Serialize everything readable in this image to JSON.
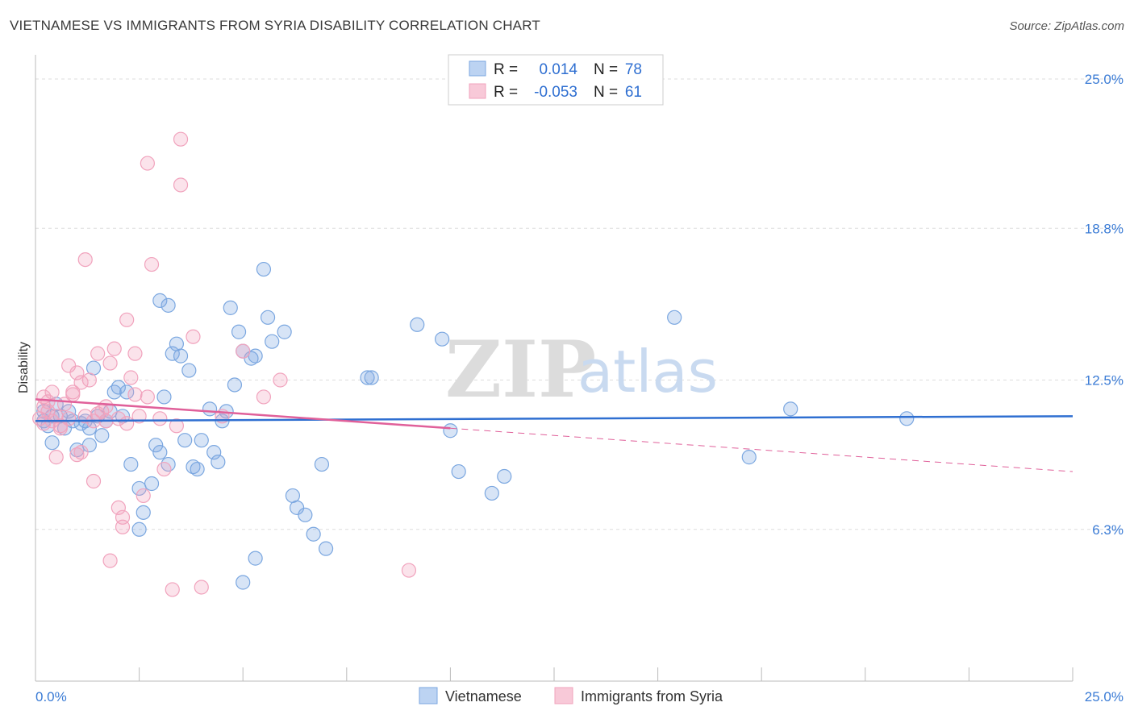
{
  "title": "VIETNAMESE VS IMMIGRANTS FROM SYRIA DISABILITY CORRELATION CHART",
  "source": "Source: ZipAtlas.com",
  "watermark": {
    "zip": "ZIP",
    "atlas": "atlas"
  },
  "chart_data": {
    "type": "scatter",
    "title": "VIETNAMESE VS IMMIGRANTS FROM SYRIA DISABILITY CORRELATION CHART",
    "xlabel": "",
    "ylabel": "Disability",
    "xlim": [
      0,
      25
    ],
    "ylim": [
      0,
      25
    ],
    "x_tick_labels": {
      "left": "0.0%",
      "right": "25.0%"
    },
    "y_ticks": [
      {
        "value": 6.3,
        "label": "6.3%"
      },
      {
        "value": 12.5,
        "label": "12.5%"
      },
      {
        "value": 18.8,
        "label": "18.8%"
      },
      {
        "value": 25.0,
        "label": "25.0%"
      }
    ],
    "legend": {
      "position": "top-center",
      "entries": [
        {
          "r_label": "R =",
          "r_value": "0.014",
          "n_label": "N =",
          "n_value": "78"
        },
        {
          "r_label": "R =",
          "r_value": "-0.053",
          "n_label": "N =",
          "n_value": "61"
        }
      ]
    },
    "series": [
      {
        "name": "Vietnamese",
        "color": "#7ba7e0",
        "line_color": "#2f6fd1",
        "trend": {
          "x0": 0,
          "y0": 10.8,
          "x1": 25,
          "y1": 11.0,
          "dashed_from": null
        },
        "points": [
          [
            0.2,
            10.8
          ],
          [
            0.2,
            11.2
          ],
          [
            0.3,
            10.6
          ],
          [
            0.4,
            11.0
          ],
          [
            0.5,
            11.5
          ],
          [
            0.6,
            11.0
          ],
          [
            0.7,
            10.5
          ],
          [
            0.4,
            9.9
          ],
          [
            0.8,
            11.2
          ],
          [
            0.9,
            10.8
          ],
          [
            1.0,
            9.6
          ],
          [
            1.1,
            10.7
          ],
          [
            1.2,
            10.8
          ],
          [
            1.3,
            9.8
          ],
          [
            1.3,
            10.5
          ],
          [
            1.4,
            13.0
          ],
          [
            1.5,
            11.0
          ],
          [
            1.6,
            10.2
          ],
          [
            1.7,
            10.8
          ],
          [
            1.8,
            11.2
          ],
          [
            1.9,
            12.0
          ],
          [
            2.0,
            12.2
          ],
          [
            2.1,
            11.0
          ],
          [
            2.2,
            12.0
          ],
          [
            2.3,
            9.0
          ],
          [
            2.5,
            8.0
          ],
          [
            2.6,
            7.0
          ],
          [
            2.8,
            8.2
          ],
          [
            2.9,
            9.8
          ],
          [
            3.0,
            9.5
          ],
          [
            3.1,
            11.8
          ],
          [
            3.2,
            9.0
          ],
          [
            3.3,
            13.6
          ],
          [
            3.4,
            14.0
          ],
          [
            3.5,
            13.5
          ],
          [
            3.6,
            10.0
          ],
          [
            3.7,
            12.9
          ],
          [
            3.8,
            8.9
          ],
          [
            3.9,
            8.8
          ],
          [
            4.0,
            10.0
          ],
          [
            4.2,
            11.3
          ],
          [
            4.3,
            9.5
          ],
          [
            4.4,
            9.1
          ],
          [
            4.5,
            10.8
          ],
          [
            4.6,
            11.2
          ],
          [
            4.7,
            15.5
          ],
          [
            4.8,
            12.3
          ],
          [
            4.9,
            14.5
          ],
          [
            5.0,
            13.7
          ],
          [
            5.2,
            13.4
          ],
          [
            5.3,
            13.5
          ],
          [
            5.5,
            17.1
          ],
          [
            5.6,
            15.1
          ],
          [
            5.7,
            14.1
          ],
          [
            6.0,
            14.5
          ],
          [
            6.2,
            7.7
          ],
          [
            6.3,
            7.2
          ],
          [
            6.5,
            6.9
          ],
          [
            6.7,
            6.1
          ],
          [
            6.9,
            9.0
          ],
          [
            7.0,
            5.5
          ],
          [
            8.0,
            12.6
          ],
          [
            8.1,
            12.6
          ],
          [
            9.2,
            14.8
          ],
          [
            9.8,
            14.2
          ],
          [
            10.0,
            10.4
          ],
          [
            10.2,
            8.7
          ],
          [
            11.0,
            7.8
          ],
          [
            11.3,
            8.5
          ],
          [
            15.4,
            15.1
          ],
          [
            17.2,
            9.3
          ],
          [
            18.2,
            11.3
          ],
          [
            21.0,
            10.9
          ],
          [
            3.0,
            15.8
          ],
          [
            3.2,
            15.6
          ],
          [
            5.0,
            4.1
          ],
          [
            5.3,
            5.1
          ],
          [
            2.5,
            6.3
          ]
        ]
      },
      {
        "name": "Immigrants from Syria",
        "color": "#f1a3bd",
        "line_color": "#e0609a",
        "trend": {
          "x0": 0,
          "y0": 11.7,
          "x1": 10,
          "y1": 10.5,
          "dash_x1": 25,
          "dash_y1": 8.7
        },
        "points": [
          [
            0.1,
            10.9
          ],
          [
            0.2,
            11.4
          ],
          [
            0.2,
            11.8
          ],
          [
            0.3,
            11.2
          ],
          [
            0.4,
            10.8
          ],
          [
            0.4,
            12.0
          ],
          [
            0.5,
            11.0
          ],
          [
            0.6,
            10.6
          ],
          [
            0.7,
            11.5
          ],
          [
            0.8,
            13.1
          ],
          [
            0.9,
            12.0
          ],
          [
            1.0,
            9.4
          ],
          [
            1.0,
            12.8
          ],
          [
            1.1,
            12.4
          ],
          [
            1.2,
            11.0
          ],
          [
            1.3,
            12.5
          ],
          [
            1.4,
            8.3
          ],
          [
            1.5,
            13.6
          ],
          [
            1.6,
            11.2
          ],
          [
            1.7,
            10.8
          ],
          [
            1.8,
            13.2
          ],
          [
            1.9,
            13.8
          ],
          [
            2.0,
            7.2
          ],
          [
            2.1,
            6.8
          ],
          [
            2.1,
            6.4
          ],
          [
            2.2,
            15.0
          ],
          [
            2.3,
            12.6
          ],
          [
            2.4,
            13.6
          ],
          [
            2.5,
            11.0
          ],
          [
            2.6,
            7.7
          ],
          [
            2.7,
            11.8
          ],
          [
            2.8,
            17.3
          ],
          [
            3.0,
            10.9
          ],
          [
            3.1,
            8.8
          ],
          [
            3.3,
            3.8
          ],
          [
            3.5,
            22.5
          ],
          [
            3.5,
            20.6
          ],
          [
            3.8,
            14.3
          ],
          [
            4.0,
            3.9
          ],
          [
            2.7,
            21.5
          ],
          [
            1.2,
            17.5
          ],
          [
            1.8,
            5.0
          ],
          [
            4.5,
            11.0
          ],
          [
            5.0,
            13.7
          ],
          [
            5.5,
            11.8
          ],
          [
            5.9,
            12.5
          ],
          [
            9.0,
            4.6
          ],
          [
            0.5,
            9.3
          ],
          [
            0.6,
            10.5
          ],
          [
            1.4,
            10.8
          ],
          [
            2.2,
            10.7
          ],
          [
            0.3,
            11.6
          ],
          [
            0.9,
            11.9
          ],
          [
            1.5,
            11.1
          ],
          [
            2.0,
            10.9
          ],
          [
            1.1,
            9.5
          ],
          [
            0.8,
            10.9
          ],
          [
            1.7,
            11.4
          ],
          [
            2.4,
            11.9
          ],
          [
            3.4,
            10.6
          ],
          [
            0.2,
            10.7
          ]
        ]
      }
    ]
  }
}
